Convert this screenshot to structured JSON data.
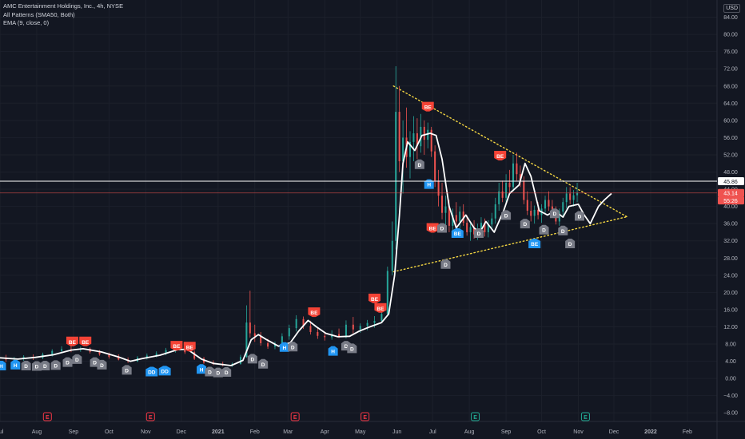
{
  "legend": {
    "symbol": "AMC Entertainment Holdings, Inc., 4h, NYSE",
    "indicator1": "All Patterns (SMA50, Both)",
    "indicator2": "EMA (9, close, 0)"
  },
  "currency_badge": "USD",
  "colors": {
    "background": "#131722",
    "grid": "#1c202b",
    "ema": "#ffffff",
    "candle_up": "#26a69a",
    "candle_down": "#ef5350",
    "trendline": "#f5d742",
    "bullish": "#2196f3",
    "bearish": "#f44336",
    "doji": "#787b86",
    "axis_text": "#b2b5be"
  },
  "chart_data": {
    "type": "candlestick",
    "ylim": [
      -10,
      88
    ],
    "y_ticks": [
      "84.00",
      "80.00",
      "76.00",
      "72.00",
      "68.00",
      "64.00",
      "60.00",
      "56.00",
      "52.00",
      "48.00",
      "44.00",
      "40.00",
      "36.00",
      "32.00",
      "28.00",
      "24.00",
      "20.00",
      "16.00",
      "12.00",
      "8.00",
      "4.00",
      "0.00",
      "−4.00",
      "−8.00"
    ],
    "x_range_days": [
      0,
      605
    ],
    "x_ticks": [
      {
        "label": "Jul",
        "day": 0
      },
      {
        "label": "Aug",
        "day": 31
      },
      {
        "label": "Sep",
        "day": 62
      },
      {
        "label": "Oct",
        "day": 92
      },
      {
        "label": "Nov",
        "day": 123
      },
      {
        "label": "Dec",
        "day": 153
      },
      {
        "label": "2021",
        "day": 184
      },
      {
        "label": "Feb",
        "day": 215
      },
      {
        "label": "Mar",
        "day": 243
      },
      {
        "label": "Apr",
        "day": 274
      },
      {
        "label": "May",
        "day": 304
      },
      {
        "label": "Jun",
        "day": 335
      },
      {
        "label": "Jul",
        "day": 365
      },
      {
        "label": "Aug",
        "day": 396
      },
      {
        "label": "Sep",
        "day": 427
      },
      {
        "label": "Oct",
        "day": 457
      },
      {
        "label": "Nov",
        "day": 488
      },
      {
        "label": "Dec",
        "day": 518
      },
      {
        "label": "2022",
        "day": 549
      },
      {
        "label": "Feb",
        "day": 580
      }
    ],
    "price_lines": [
      {
        "label": "45.86",
        "value": 45.86,
        "color": "#ffffff",
        "text_color": "#131722"
      },
      {
        "label": "43.14",
        "value": 43.14,
        "color": "#ef5350",
        "text_color": "#ffffff"
      },
      {
        "label": "55:26",
        "value": 41.4,
        "color": "#ef5350",
        "text_color": "#ffffff",
        "no_line": true
      }
    ],
    "ema_points": [
      [
        0,
        4.8
      ],
      [
        15,
        4.5
      ],
      [
        30,
        4.9
      ],
      [
        45,
        5.5
      ],
      [
        60,
        6.6
      ],
      [
        70,
        6.9
      ],
      [
        85,
        6.2
      ],
      [
        100,
        5.0
      ],
      [
        110,
        4.0
      ],
      [
        120,
        4.6
      ],
      [
        135,
        5.4
      ],
      [
        150,
        6.7
      ],
      [
        158,
        6.8
      ],
      [
        170,
        4.5
      ],
      [
        180,
        3.5
      ],
      [
        195,
        3.0
      ],
      [
        205,
        4.2
      ],
      [
        212,
        9.0
      ],
      [
        218,
        10.2
      ],
      [
        225,
        9.0
      ],
      [
        235,
        7.5
      ],
      [
        245,
        8.3
      ],
      [
        252,
        11.0
      ],
      [
        260,
        13.5
      ],
      [
        267,
        12.0
      ],
      [
        275,
        10.5
      ],
      [
        285,
        9.7
      ],
      [
        295,
        9.8
      ],
      [
        303,
        11.0
      ],
      [
        312,
        12.0
      ],
      [
        322,
        13.0
      ],
      [
        328,
        15.0
      ],
      [
        333,
        24.0
      ],
      [
        337,
        38.0
      ],
      [
        340,
        50.0
      ],
      [
        344,
        55.0
      ],
      [
        350,
        53.0
      ],
      [
        356,
        56.5
      ],
      [
        363,
        57.0
      ],
      [
        368,
        56.5
      ],
      [
        373,
        51.0
      ],
      [
        379,
        40.0
      ],
      [
        385,
        35.0
      ],
      [
        393,
        38.0
      ],
      [
        400,
        35.0
      ],
      [
        405,
        34.0
      ],
      [
        410,
        36.5
      ],
      [
        417,
        34.0
      ],
      [
        425,
        39.0
      ],
      [
        430,
        43.0
      ],
      [
        438,
        45.0
      ],
      [
        443,
        50.0
      ],
      [
        448,
        47.0
      ],
      [
        455,
        39.0
      ],
      [
        462,
        38.0
      ],
      [
        468,
        39.0
      ],
      [
        475,
        37.5
      ],
      [
        480,
        40.0
      ],
      [
        488,
        40.5
      ],
      [
        493,
        38.0
      ],
      [
        498,
        36.0
      ],
      [
        505,
        40.0
      ],
      [
        510,
        41.5
      ],
      [
        516,
        43.0
      ]
    ],
    "candles": [
      [
        5,
        4.8,
        5.5,
        3.8,
        4.4
      ],
      [
        12,
        4.4,
        5.0,
        3.9,
        4.6
      ],
      [
        20,
        4.6,
        5.4,
        4.1,
        5.0
      ],
      [
        28,
        5.0,
        5.6,
        4.3,
        4.8
      ],
      [
        36,
        4.8,
        6.0,
        4.5,
        5.6
      ],
      [
        44,
        5.6,
        6.8,
        5.1,
        6.4
      ],
      [
        52,
        6.4,
        7.5,
        6.0,
        6.8
      ],
      [
        60,
        6.8,
        7.6,
        6.1,
        6.7
      ],
      [
        68,
        6.7,
        7.4,
        6.2,
        6.9
      ],
      [
        76,
        6.9,
        7.2,
        5.8,
        6.2
      ],
      [
        84,
        6.2,
        6.6,
        5.3,
        5.6
      ],
      [
        92,
        5.6,
        6.0,
        4.6,
        5.0
      ],
      [
        100,
        5.0,
        5.6,
        4.2,
        4.4
      ],
      [
        108,
        4.4,
        4.9,
        3.6,
        4.0
      ],
      [
        116,
        4.0,
        5.2,
        3.8,
        4.8
      ],
      [
        124,
        4.8,
        5.8,
        4.4,
        5.3
      ],
      [
        132,
        5.3,
        6.3,
        4.9,
        5.8
      ],
      [
        140,
        5.8,
        7.1,
        5.4,
        6.6
      ],
      [
        148,
        6.6,
        7.4,
        6.0,
        6.9
      ],
      [
        156,
        6.9,
        7.5,
        5.7,
        6.1
      ],
      [
        164,
        6.1,
        6.5,
        4.3,
        4.6
      ],
      [
        172,
        4.6,
        5.0,
        3.4,
        3.7
      ],
      [
        180,
        3.7,
        4.2,
        3.1,
        3.4
      ],
      [
        188,
        3.4,
        3.9,
        2.8,
        3.1
      ],
      [
        196,
        3.1,
        3.7,
        2.7,
        3.4
      ],
      [
        203,
        3.4,
        5.5,
        3.2,
        5.0
      ],
      [
        208,
        5.0,
        17.0,
        4.8,
        13.0
      ],
      [
        211,
        13.0,
        20.4,
        9.5,
        10.5
      ],
      [
        215,
        10.5,
        12.5,
        8.5,
        9.8
      ],
      [
        220,
        9.8,
        10.8,
        7.6,
        8.2
      ],
      [
        226,
        8.2,
        9.2,
        6.9,
        7.4
      ],
      [
        232,
        7.4,
        8.6,
        6.8,
        8.1
      ],
      [
        238,
        8.1,
        10.5,
        7.6,
        9.8
      ],
      [
        244,
        9.8,
        12.5,
        9.0,
        11.7
      ],
      [
        250,
        11.7,
        14.7,
        10.9,
        13.8
      ],
      [
        256,
        13.8,
        14.4,
        11.5,
        12.2
      ],
      [
        262,
        12.2,
        13.4,
        10.2,
        10.8
      ],
      [
        268,
        10.8,
        11.8,
        9.2,
        9.9
      ],
      [
        274,
        9.9,
        10.8,
        8.8,
        9.6
      ],
      [
        280,
        9.6,
        11.2,
        9.0,
        10.3
      ],
      [
        286,
        10.3,
        11.6,
        9.4,
        9.8
      ],
      [
        292,
        9.8,
        13.5,
        9.3,
        12.5
      ],
      [
        298,
        12.5,
        14.3,
        10.5,
        11.4
      ],
      [
        304,
        11.4,
        12.8,
        10.6,
        12.2
      ],
      [
        310,
        12.2,
        13.6,
        11.2,
        12.9
      ],
      [
        316,
        12.9,
        14.5,
        11.8,
        13.4
      ],
      [
        322,
        13.4,
        15.6,
        12.9,
        15.0
      ],
      [
        327,
        15.0,
        26.0,
        14.5,
        25.0
      ],
      [
        331,
        25.0,
        36.5,
        24.0,
        32.0
      ],
      [
        334,
        32.0,
        72.6,
        30.0,
        62.0
      ],
      [
        337,
        62.0,
        68.0,
        48.0,
        50.5
      ],
      [
        340,
        50.5,
        60.0,
        43.0,
        56.0
      ],
      [
        343,
        56.0,
        63.0,
        49.0,
        51.5
      ],
      [
        346,
        51.5,
        57.5,
        46.5,
        55.0
      ],
      [
        349,
        55.0,
        61.0,
        50.5,
        57.0
      ],
      [
        352,
        57.0,
        60.5,
        51.0,
        54.0
      ],
      [
        355,
        54.0,
        61.5,
        52.5,
        58.5
      ],
      [
        358,
        58.5,
        60.0,
        52.0,
        55.5
      ],
      [
        361,
        55.5,
        59.5,
        53.5,
        57.8
      ],
      [
        364,
        57.8,
        58.5,
        51.5,
        52.8
      ],
      [
        367,
        52.8,
        54.2,
        44.5,
        46.0
      ],
      [
        370,
        46.0,
        48.5,
        40.0,
        42.5
      ],
      [
        373,
        42.5,
        45.5,
        37.0,
        38.5
      ],
      [
        376,
        38.5,
        42.5,
        34.5,
        40.0
      ],
      [
        379,
        40.0,
        41.5,
        34.0,
        35.5
      ],
      [
        382,
        35.5,
        39.5,
        33.5,
        38.0
      ],
      [
        385,
        38.0,
        41.0,
        35.2,
        36.5
      ],
      [
        388,
        36.5,
        40.0,
        34.0,
        38.8
      ],
      [
        391,
        38.8,
        40.5,
        35.5,
        36.2
      ],
      [
        394,
        36.2,
        38.0,
        33.2,
        34.0
      ],
      [
        397,
        34.0,
        36.5,
        32.0,
        35.2
      ],
      [
        400,
        35.2,
        36.8,
        32.5,
        33.5
      ],
      [
        403,
        33.5,
        36.0,
        32.2,
        34.8
      ],
      [
        406,
        34.8,
        37.5,
        33.6,
        36.2
      ],
      [
        409,
        36.2,
        37.2,
        33.0,
        34.0
      ],
      [
        412,
        34.0,
        36.8,
        32.8,
        35.8
      ],
      [
        415,
        35.8,
        38.5,
        34.5,
        37.2
      ],
      [
        418,
        37.2,
        42.0,
        36.0,
        40.5
      ],
      [
        421,
        40.5,
        45.5,
        39.0,
        43.5
      ],
      [
        424,
        43.5,
        46.0,
        41.0,
        42.0
      ],
      [
        427,
        42.0,
        47.5,
        40.5,
        45.5
      ],
      [
        430,
        45.5,
        48.5,
        43.0,
        44.5
      ],
      [
        433,
        44.5,
        52.0,
        43.5,
        50.0
      ],
      [
        436,
        50.0,
        52.5,
        46.0,
        47.5
      ],
      [
        439,
        47.5,
        49.5,
        44.5,
        45.8
      ],
      [
        442,
        45.8,
        47.0,
        40.5,
        41.5
      ],
      [
        445,
        41.5,
        43.5,
        38.0,
        39.0
      ],
      [
        448,
        39.0,
        41.2,
        36.5,
        37.8
      ],
      [
        451,
        37.8,
        40.2,
        36.0,
        39.2
      ],
      [
        454,
        39.2,
        41.0,
        37.0,
        38.0
      ],
      [
        457,
        38.0,
        40.5,
        36.2,
        39.5
      ],
      [
        460,
        39.5,
        42.5,
        38.5,
        41.5
      ],
      [
        463,
        41.5,
        43.5,
        39.0,
        40.0
      ],
      [
        466,
        40.0,
        41.5,
        37.5,
        38.5
      ],
      [
        469,
        38.5,
        40.0,
        35.8,
        36.5
      ],
      [
        472,
        36.5,
        39.5,
        35.5,
        38.8
      ],
      [
        475,
        38.8,
        42.0,
        37.8,
        41.0
      ],
      [
        478,
        41.0,
        44.5,
        39.5,
        43.0
      ],
      [
        481,
        43.0,
        44.5,
        40.5,
        41.5
      ],
      [
        484,
        41.5,
        43.8,
        40.0,
        42.6
      ],
      [
        487,
        42.6,
        45.5,
        41.0,
        43.14
      ]
    ],
    "patterns": [
      {
        "label": "H",
        "kind": "bull",
        "day": 1,
        "value": 3.0
      },
      {
        "label": "H",
        "kind": "bull",
        "day": 13,
        "value": 3.2
      },
      {
        "label": "D",
        "kind": "doji",
        "day": 22,
        "value": 3.0
      },
      {
        "label": "D",
        "kind": "doji",
        "day": 31,
        "value": 2.9
      },
      {
        "label": "D",
        "kind": "doji",
        "day": 38,
        "value": 3.0
      },
      {
        "label": "D",
        "kind": "doji",
        "day": 47,
        "value": 3.1
      },
      {
        "label": "BE",
        "kind": "bear",
        "day": 61,
        "value": 8.6
      },
      {
        "label": "BE",
        "kind": "bear",
        "day": 72,
        "value": 8.6
      },
      {
        "label": "D",
        "kind": "doji",
        "day": 57,
        "value": 3.8
      },
      {
        "label": "D",
        "kind": "doji",
        "day": 65,
        "value": 4.5
      },
      {
        "label": "D",
        "kind": "doji",
        "day": 80,
        "value": 3.8
      },
      {
        "label": "D",
        "kind": "doji",
        "day": 86,
        "value": 3.2
      },
      {
        "label": "D",
        "kind": "doji",
        "day": 107,
        "value": 2.0
      },
      {
        "label": "DD",
        "kind": "bull",
        "day": 128,
        "value": 1.6
      },
      {
        "label": "DD",
        "kind": "bull",
        "day": 139,
        "value": 1.8
      },
      {
        "label": "BE",
        "kind": "bear",
        "day": 149,
        "value": 7.6
      },
      {
        "label": "BE",
        "kind": "bear",
        "day": 160,
        "value": 7.4
      },
      {
        "label": "H",
        "kind": "bull",
        "day": 170,
        "value": 2.2
      },
      {
        "label": "D",
        "kind": "doji",
        "day": 177,
        "value": 1.6
      },
      {
        "label": "D",
        "kind": "doji",
        "day": 184,
        "value": 1.4
      },
      {
        "label": "D",
        "kind": "doji",
        "day": 191,
        "value": 1.5
      },
      {
        "label": "D",
        "kind": "doji",
        "day": 213,
        "value": 4.6
      },
      {
        "label": "D",
        "kind": "doji",
        "day": 222,
        "value": 3.4
      },
      {
        "label": "H",
        "kind": "bull",
        "day": 240,
        "value": 7.3
      },
      {
        "label": "D",
        "kind": "doji",
        "day": 247,
        "value": 7.4
      },
      {
        "label": "BE",
        "kind": "bear",
        "day": 265,
        "value": 15.4
      },
      {
        "label": "H",
        "kind": "bull",
        "day": 281,
        "value": 6.4
      },
      {
        "label": "D",
        "kind": "doji",
        "day": 292,
        "value": 7.6
      },
      {
        "label": "D",
        "kind": "doji",
        "day": 297,
        "value": 7.0
      },
      {
        "label": "BE",
        "kind": "bear",
        "day": 316,
        "value": 18.6
      },
      {
        "label": "BE",
        "kind": "bear",
        "day": 321,
        "value": 16.4
      },
      {
        "label": "BE",
        "kind": "bear",
        "day": 361,
        "value": 63.2
      },
      {
        "label": "D",
        "kind": "doji",
        "day": 354,
        "value": 49.8
      },
      {
        "label": "H",
        "kind": "bull",
        "day": 362,
        "value": 45.2
      },
      {
        "label": "BE",
        "kind": "bear",
        "day": 365,
        "value": 35.0
      },
      {
        "label": "D",
        "kind": "doji",
        "day": 373,
        "value": 35.0
      },
      {
        "label": "D",
        "kind": "doji",
        "day": 376,
        "value": 26.6
      },
      {
        "label": "BE",
        "kind": "bull",
        "day": 386,
        "value": 33.8
      },
      {
        "label": "D",
        "kind": "doji",
        "day": 404,
        "value": 33.8
      },
      {
        "label": "BE",
        "kind": "bear",
        "day": 422,
        "value": 51.8
      },
      {
        "label": "D",
        "kind": "doji",
        "day": 427,
        "value": 38.0
      },
      {
        "label": "D",
        "kind": "doji",
        "day": 443,
        "value": 36.0
      },
      {
        "label": "BE",
        "kind": "bull",
        "day": 451,
        "value": 31.4
      },
      {
        "label": "D",
        "kind": "doji",
        "day": 459,
        "value": 34.6
      },
      {
        "label": "D",
        "kind": "doji",
        "day": 468,
        "value": 38.4
      },
      {
        "label": "D",
        "kind": "doji",
        "day": 475,
        "value": 34.4
      },
      {
        "label": "D",
        "kind": "doji",
        "day": 481,
        "value": 31.4
      },
      {
        "label": "D",
        "kind": "doji",
        "day": 489,
        "value": 37.8
      }
    ],
    "triangle": {
      "start_day": 332,
      "start_top": 68.0,
      "start_bottom": 24.8,
      "apex_day": 529,
      "apex_value": 37.6
    },
    "earnings": [
      {
        "label": "E",
        "day": 40,
        "color": "#f23645"
      },
      {
        "label": "E",
        "day": 127,
        "color": "#f23645"
      },
      {
        "label": "E",
        "day": 249,
        "color": "#f23645"
      },
      {
        "label": "E",
        "day": 308,
        "color": "#f23645"
      },
      {
        "label": "E",
        "day": 401,
        "color": "#22ab94"
      },
      {
        "label": "E",
        "day": 494,
        "color": "#22ab94"
      }
    ]
  }
}
